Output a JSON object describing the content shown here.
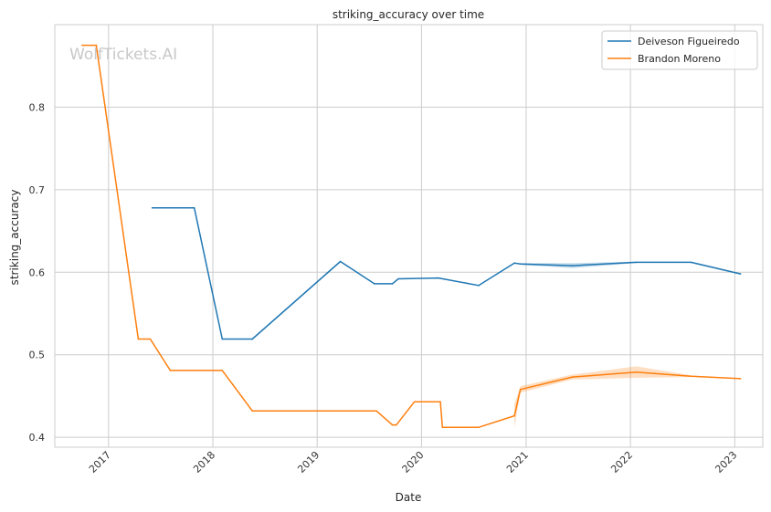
{
  "chart_data": {
    "type": "line",
    "title": "striking_accuracy over time",
    "xlabel": "Date",
    "ylabel": "striking_accuracy",
    "watermark": "WolfTickets.AI",
    "x_axis": "date",
    "xlim": [
      "2016-06-27",
      "2023-04-09"
    ],
    "ylim": [
      0.388,
      0.9
    ],
    "x_ticks": [
      {
        "date": "2017-01-01",
        "label": "2017"
      },
      {
        "date": "2018-01-01",
        "label": "2018"
      },
      {
        "date": "2019-01-01",
        "label": "2019"
      },
      {
        "date": "2020-01-01",
        "label": "2020"
      },
      {
        "date": "2021-01-01",
        "label": "2021"
      },
      {
        "date": "2022-01-01",
        "label": "2022"
      },
      {
        "date": "2023-01-01",
        "label": "2023"
      }
    ],
    "y_ticks": [
      {
        "value": 0.4,
        "label": "0.4"
      },
      {
        "value": 0.5,
        "label": "0.5"
      },
      {
        "value": 0.6,
        "label": "0.6"
      },
      {
        "value": 0.7,
        "label": "0.7"
      },
      {
        "value": 0.8,
        "label": "0.8"
      }
    ],
    "grid": true,
    "legend_position": "top-right",
    "series": [
      {
        "name": "Deiveson Figueiredo",
        "color": "#1f77b4",
        "points": [
          {
            "x": "2017-06-03",
            "y": 0.678
          },
          {
            "x": "2017-10-28",
            "y": 0.678
          },
          {
            "x": "2018-02-03",
            "y": 0.519
          },
          {
            "x": "2018-05-19",
            "y": 0.519
          },
          {
            "x": "2019-03-23",
            "y": 0.613
          },
          {
            "x": "2019-07-20",
            "y": 0.586
          },
          {
            "x": "2019-09-21",
            "y": 0.586
          },
          {
            "x": "2019-10-12",
            "y": 0.592
          },
          {
            "x": "2020-02-29",
            "y": 0.593
          },
          {
            "x": "2020-07-19",
            "y": 0.584
          },
          {
            "x": "2020-11-21",
            "y": 0.611
          },
          {
            "x": "2020-12-12",
            "y": 0.61
          },
          {
            "x": "2021-06-12",
            "y": 0.608
          },
          {
            "x": "2022-01-22",
            "y": 0.612
          },
          {
            "x": "2022-08-01",
            "y": 0.612
          },
          {
            "x": "2023-01-21",
            "y": 0.598
          }
        ],
        "band": [
          {
            "x": "2020-12-12",
            "lo": 0.609,
            "hi": 0.611
          },
          {
            "x": "2021-06-12",
            "lo": 0.605,
            "hi": 0.611
          },
          {
            "x": "2022-01-22",
            "lo": 0.611,
            "hi": 0.613
          }
        ]
      },
      {
        "name": "Brandon Moreno",
        "color": "#ff7f0e",
        "points": [
          {
            "x": "2016-10-01",
            "y": 0.875
          },
          {
            "x": "2016-11-19",
            "y": 0.875
          },
          {
            "x": "2017-04-15",
            "y": 0.519
          },
          {
            "x": "2017-05-27",
            "y": 0.519
          },
          {
            "x": "2017-08-05",
            "y": 0.481
          },
          {
            "x": "2018-02-03",
            "y": 0.481
          },
          {
            "x": "2018-05-19",
            "y": 0.432
          },
          {
            "x": "2019-07-27",
            "y": 0.432
          },
          {
            "x": "2019-09-21",
            "y": 0.415
          },
          {
            "x": "2019-10-05",
            "y": 0.415
          },
          {
            "x": "2019-12-07",
            "y": 0.443
          },
          {
            "x": "2020-03-07",
            "y": 0.443
          },
          {
            "x": "2020-03-14",
            "y": 0.412
          },
          {
            "x": "2020-07-18",
            "y": 0.412
          },
          {
            "x": "2020-11-21",
            "y": 0.426
          },
          {
            "x": "2020-12-12",
            "y": 0.458
          },
          {
            "x": "2021-06-12",
            "y": 0.473
          },
          {
            "x": "2022-01-22",
            "y": 0.479
          },
          {
            "x": "2022-08-01",
            "y": 0.474
          },
          {
            "x": "2023-01-21",
            "y": 0.471
          }
        ],
        "band": [
          {
            "x": "2020-11-21",
            "lo": 0.411,
            "hi": 0.441
          },
          {
            "x": "2020-12-12",
            "lo": 0.454,
            "hi": 0.462
          },
          {
            "x": "2021-06-12",
            "lo": 0.47,
            "hi": 0.476
          },
          {
            "x": "2022-01-22",
            "lo": 0.472,
            "hi": 0.486
          },
          {
            "x": "2022-08-01",
            "lo": 0.473,
            "hi": 0.475
          }
        ]
      }
    ]
  }
}
